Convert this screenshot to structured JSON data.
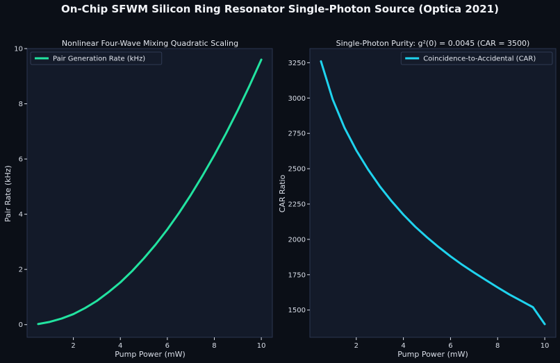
{
  "figure": {
    "suptitle": "On-Chip SFWM Silicon Ring Resonator Single-Photon Source (Optica 2021)",
    "background": "#0b0f17",
    "panel_background": "#131a29",
    "spine_color": "#2b3550"
  },
  "chart_data": [
    {
      "type": "line",
      "title": "Nonlinear Four-Wave Mixing Quadratic Scaling",
      "xlabel": "Pump Power (mW)",
      "ylabel": "Pair Rate (kHz)",
      "xlim": [
        0.03,
        10.47
      ],
      "ylim": [
        -0.46,
        10.0
      ],
      "xticks": [
        2,
        4,
        6,
        8,
        10
      ],
      "yticks": [
        0,
        2,
        4,
        6,
        8,
        10
      ],
      "grid": false,
      "legend_position": "top-left",
      "series": [
        {
          "name": "Pair Generation Rate (kHz)",
          "color": "#22e3a0",
          "x": [
            0.5,
            1.0,
            1.5,
            2.0,
            2.5,
            3.0,
            3.5,
            4.0,
            4.5,
            5.0,
            5.5,
            6.0,
            6.5,
            7.0,
            7.5,
            8.0,
            8.5,
            9.0,
            9.5,
            10.0
          ],
          "values": [
            0.02,
            0.1,
            0.22,
            0.38,
            0.6,
            0.86,
            1.18,
            1.53,
            1.94,
            2.4,
            2.9,
            3.45,
            4.05,
            4.7,
            5.4,
            6.14,
            6.93,
            7.77,
            8.66,
            9.6
          ]
        }
      ]
    },
    {
      "type": "line",
      "title": "Single-Photon Purity: g²(0) = 0.0045 (CAR = 3500)",
      "xlabel": "Pump Power (mW)",
      "ylabel": "CAR Ratio",
      "xlim": [
        0.03,
        10.47
      ],
      "ylim": [
        1307,
        3350
      ],
      "xticks": [
        2,
        4,
        6,
        8,
        10
      ],
      "yticks": [
        1500,
        1750,
        2000,
        2250,
        2500,
        2750,
        3000,
        3250
      ],
      "grid": false,
      "legend_position": "top-right",
      "series": [
        {
          "name": "Coincidence-to-Accidental (CAR)",
          "color": "#1fd3ee",
          "x": [
            0.5,
            1.0,
            1.5,
            2.0,
            2.5,
            3.0,
            3.5,
            4.0,
            4.5,
            5.0,
            5.5,
            6.0,
            6.5,
            7.0,
            7.5,
            8.0,
            8.5,
            9.0,
            9.5,
            10.0
          ],
          "values": [
            3260,
            2990,
            2790,
            2630,
            2495,
            2375,
            2270,
            2175,
            2090,
            2015,
            1945,
            1880,
            1820,
            1765,
            1712,
            1660,
            1610,
            1565,
            1520,
            1400
          ]
        }
      ]
    }
  ]
}
